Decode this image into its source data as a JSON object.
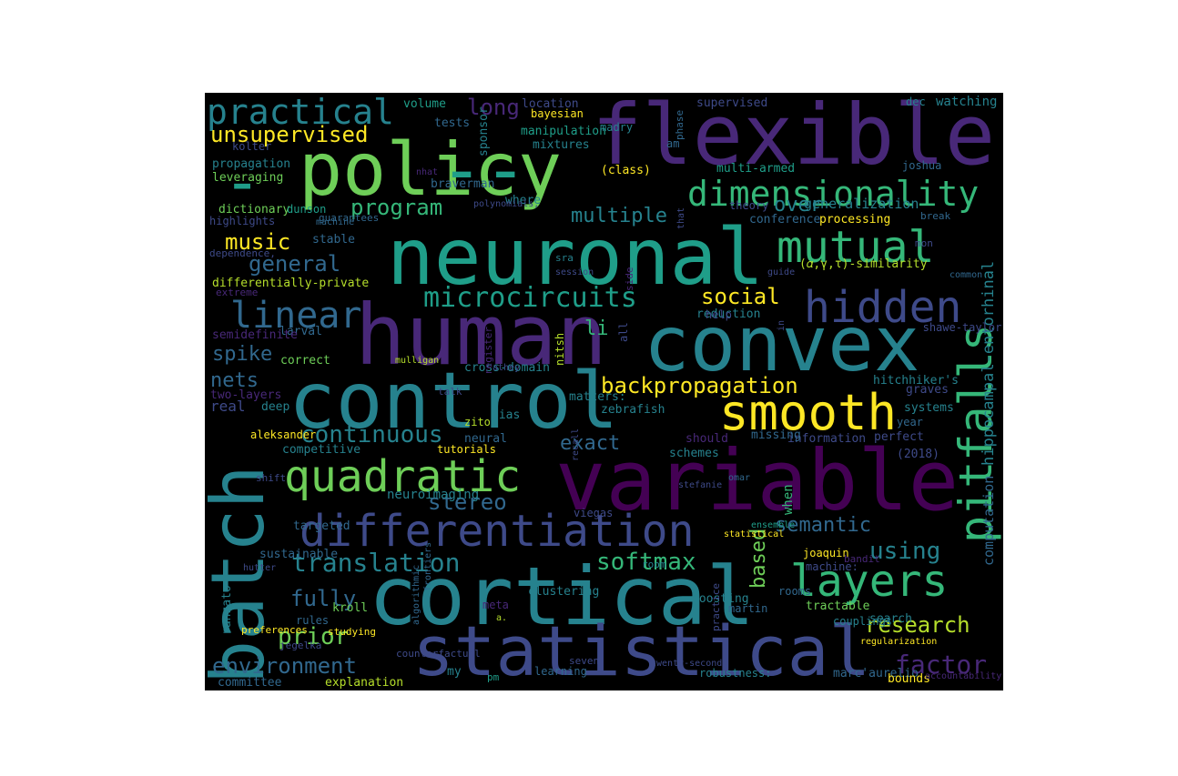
{
  "palette": {
    "d1": "#440154",
    "d2": "#482878",
    "d3": "#3e4a89",
    "d4": "#31688e",
    "d5": "#26828e",
    "d6": "#1f9e89",
    "d7": "#35b779",
    "d8": "#6ece58",
    "d9": "#b5de2b",
    "d10": "#fde725"
  },
  "words": [
    "flexible",
    "policy",
    "--",
    "-",
    "neuronal",
    "human",
    "convex",
    "control",
    "variable",
    "batch",
    "cortical",
    "statistical",
    "differentiation",
    "quadratic",
    "smooth",
    "pitfalls",
    "hidden",
    "mutual",
    "dimensionality",
    "layers",
    "practical",
    "microcircuits",
    "linear",
    "backpropagation",
    "unsupervised",
    "program",
    "music",
    "general",
    "social",
    "research",
    "semantic",
    "using",
    "translation",
    "softmax",
    "stereo",
    "continuous",
    "exact",
    "fully",
    "prior",
    "environment",
    "factor",
    "spike",
    "nets",
    "long",
    "multiple",
    "over",
    "based",
    "li",
    "hippocampal-entorhinal",
    "computation",
    "generalization",
    "propagation",
    "leveraging",
    "dictionary",
    "dunson",
    "highlights",
    "kolter",
    "volume",
    "tests",
    "location",
    "bayesian",
    "manipulation",
    "mixtures",
    "madry",
    "supervised",
    "watching",
    "dec",
    "(class)",
    "am",
    "multi-armed",
    "joshua",
    "theory",
    "conference",
    "processing",
    "break",
    "mon",
    "(𝛼,γ,τ)-similarity",
    "guide",
    "common",
    "reduction",
    "shawe-taylor",
    "differentially-private",
    "larval",
    "correct",
    "mulligan",
    "cross-domain",
    "athey",
    "semidefinite",
    "two-layers",
    "real",
    "deep",
    "talk",
    "zebrafish",
    "graves",
    "systems",
    "year",
    "matters:",
    "bias",
    "zito",
    "neural",
    "aleksander",
    "competitive",
    "tutorials",
    "information",
    "perfect",
    "(2018)",
    "schemes",
    "should",
    "missing",
    "viegas",
    "neuroimaging",
    "targeted",
    "stefanie",
    "omar",
    "sustainable",
    "hutter",
    "joaquin",
    "machine:",
    "bandit",
    "martin",
    "rooms",
    "couplings",
    "search",
    "tractable",
    "boosting",
    "clustering",
    "meta",
    "room",
    "kroll",
    "rules",
    "studying",
    "jegelka",
    "algorithmic",
    "ranzato",
    "preferences",
    "a.",
    "my",
    "pm",
    "learning",
    "robustness:",
    "marc'aurelio",
    "bounds",
    "explanation",
    "committee",
    "braverman",
    "nhat",
    "sponsor",
    "phase",
    "where",
    "machine",
    "guarantees",
    "polynomials,",
    "stable",
    "dependence,",
    "extreme",
    "help",
    "sra",
    "session",
    "in",
    "that",
    "accountability",
    "counterfactual",
    "shift",
    "seven",
    "hitchhiker's",
    "nitsh",
    "all",
    "side",
    "when",
    "practice",
    "register",
    "frontiers",
    "recall",
    "twenty-second",
    "statistical",
    "ensemble",
    "regularization",
    "bias:",
    "e",
    "info",
    "kohli",
    "reward"
  ]
}
